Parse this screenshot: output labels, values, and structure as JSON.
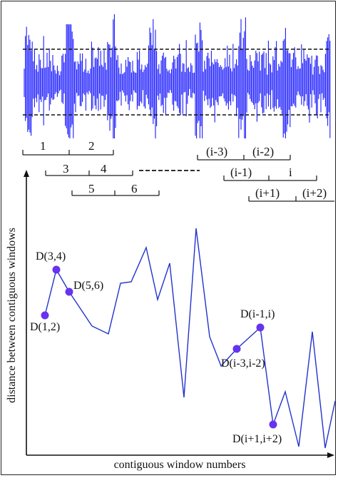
{
  "signal": {
    "color": "#1a1aff",
    "upper_threshold_style": "dashed",
    "lower_threshold_style": "dashed"
  },
  "windows": {
    "left_group": [
      {
        "id": "w-1",
        "label": "1"
      },
      {
        "id": "w-2",
        "label": "2"
      },
      {
        "id": "w-3",
        "label": "3"
      },
      {
        "id": "w-4",
        "label": "4"
      },
      {
        "id": "w-5",
        "label": "5"
      },
      {
        "id": "w-6",
        "label": "6"
      }
    ],
    "right_group": [
      {
        "id": "w-i-3",
        "label": "(i-3)"
      },
      {
        "id": "w-i-2",
        "label": "(i-2)"
      },
      {
        "id": "w-i-1",
        "label": "(i-1)"
      },
      {
        "id": "w-i",
        "label": "i"
      },
      {
        "id": "w-i+1",
        "label": "(i+1)"
      },
      {
        "id": "w-i+2",
        "label": "(i+2)"
      }
    ]
  },
  "plot": {
    "line_color": "#2233cc",
    "marker_color": "#6633ee",
    "x_axis_label": "contiguous window numbers",
    "y_axis_label": "distance between contiguous windows",
    "points": [
      {
        "label": "D(1,2)"
      },
      {
        "label": "D(3,4)"
      },
      {
        "label": "D(5,6)"
      },
      {
        "label": "D(i-1,i)"
      },
      {
        "label": "D(i-3,i-2)"
      },
      {
        "label": "D(i+1,i+2)"
      }
    ]
  }
}
